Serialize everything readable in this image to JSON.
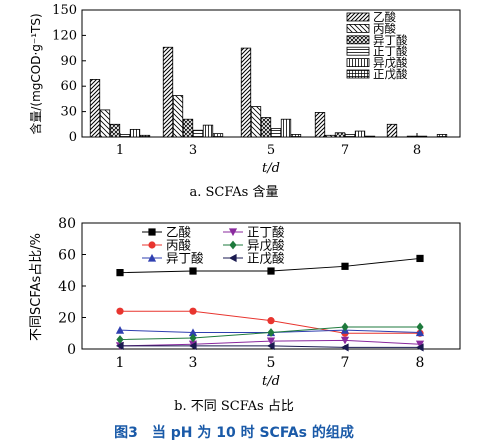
{
  "figure": {
    "caption": "图3　当 pH 为 10 时 SCFAs 的组成"
  },
  "chart_data": [
    {
      "type": "bar",
      "subcaption": "a. SCFAs 含量",
      "xlabel": "t/d",
      "ylabel": "含量/(mgCOD·g⁻¹TS)",
      "ylim": [
        0,
        150
      ],
      "yticks": [
        0,
        30,
        60,
        90,
        120,
        150
      ],
      "categories": [
        "1",
        "3",
        "5",
        "7",
        "8"
      ],
      "legend_position": "top-right",
      "series": [
        {
          "name": "乙酸",
          "values": [
            68,
            106,
            105,
            29,
            15
          ]
        },
        {
          "name": "丙酸",
          "values": [
            32,
            49,
            36,
            2,
            0
          ]
        },
        {
          "name": "异丁酸",
          "values": [
            15,
            21,
            23,
            5,
            1
          ]
        },
        {
          "name": "正丁酸",
          "values": [
            3,
            8,
            10,
            3,
            1
          ]
        },
        {
          "name": "异戊酸",
          "values": [
            9,
            14,
            21,
            7,
            0
          ]
        },
        {
          "name": "正戊酸",
          "values": [
            2,
            4,
            3,
            1,
            3
          ]
        }
      ]
    },
    {
      "type": "line",
      "subcaption": "b. 不同 SCFAs 占比",
      "xlabel": "t/d",
      "ylabel": "不同SCFAs占比/%",
      "ylim": [
        0,
        80
      ],
      "yticks": [
        0,
        20,
        40,
        60,
        80
      ],
      "x": [
        "1",
        "3",
        "5",
        "7",
        "8"
      ],
      "legend_position": "top-center",
      "series": [
        {
          "name": "乙酸",
          "color": "#000000",
          "marker": "square",
          "values": [
            48.5,
            49.5,
            49.5,
            52.5,
            57.5
          ]
        },
        {
          "name": "丙酸",
          "color": "#e8352f",
          "marker": "circle",
          "values": [
            24,
            24,
            18,
            10,
            10
          ]
        },
        {
          "name": "异丁酸",
          "color": "#2f3fb0",
          "marker": "triangle-up",
          "values": [
            12,
            10.5,
            10.5,
            12,
            10.5
          ]
        },
        {
          "name": "正丁酸",
          "color": "#8a2a9e",
          "marker": "triangle-down",
          "values": [
            2,
            3,
            5,
            5.5,
            3
          ]
        },
        {
          "name": "异戊酸",
          "color": "#1e7a3c",
          "marker": "diamond",
          "values": [
            6,
            7,
            10.5,
            14,
            14
          ]
        },
        {
          "name": "正戊酸",
          "color": "#1a1a50",
          "marker": "triangle-left",
          "values": [
            2,
            2,
            2,
            1,
            1
          ]
        }
      ]
    }
  ]
}
